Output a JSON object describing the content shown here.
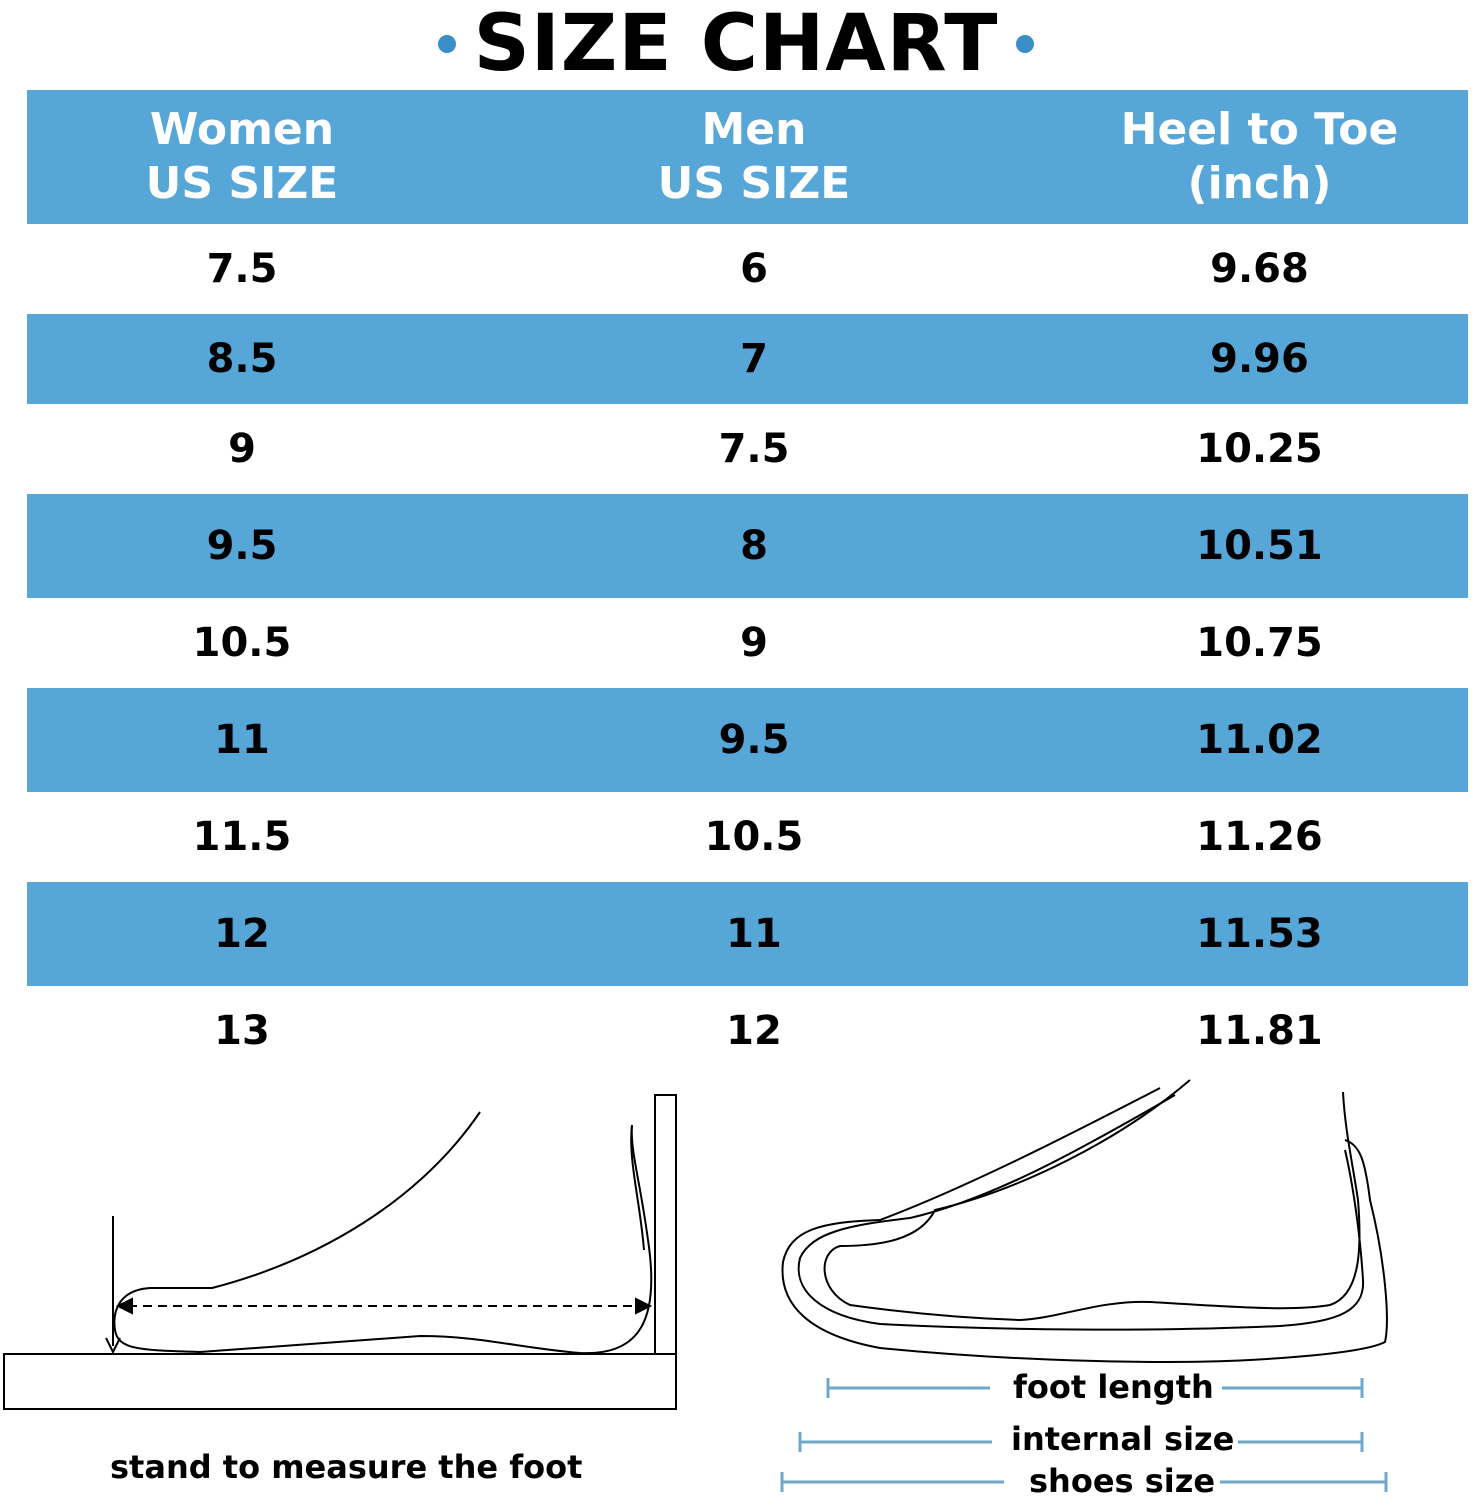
{
  "title": "SIZE CHART",
  "colors": {
    "accent": "#57a6d8",
    "dot": "#3b8fc9",
    "measure_line": "#6fa8c7"
  },
  "table": {
    "headers": [
      "Women\nUS SIZE",
      "Men\nUS SIZE",
      "Heel to Toe\n(inch)"
    ],
    "rows": [
      [
        "7.5",
        "6",
        "9.68"
      ],
      [
        "8.5",
        "7",
        "9.96"
      ],
      [
        "9",
        "7.5",
        "10.25"
      ],
      [
        "9.5",
        "8",
        "10.51"
      ],
      [
        "10.5",
        "9",
        "10.75"
      ],
      [
        "11",
        "9.5",
        "11.02"
      ],
      [
        "11.5",
        "10.5",
        "11.26"
      ],
      [
        "12",
        "11",
        "11.53"
      ],
      [
        "13",
        "12",
        "11.81"
      ]
    ]
  },
  "illustration": {
    "left_caption": "stand to measure the foot",
    "foot_length": "foot length",
    "internal_size": "internal size",
    "shoes_size": "shoes size"
  }
}
